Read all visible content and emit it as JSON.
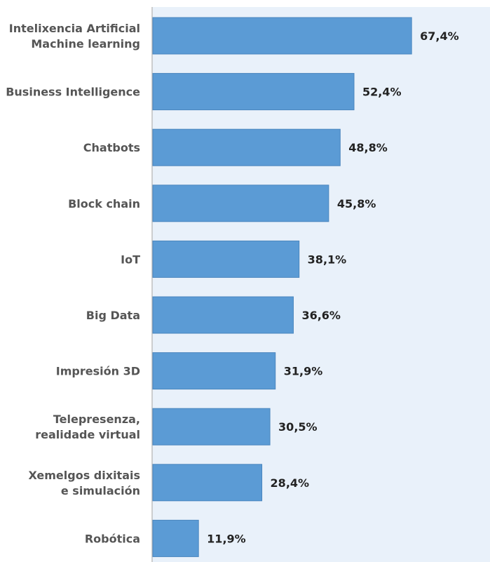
{
  "chart_data": {
    "type": "bar",
    "orientation": "horizontal",
    "categories": [
      [
        "Intelixencia Artificial",
        "Machine learning"
      ],
      [
        "Business Intelligence"
      ],
      [
        "Chatbots"
      ],
      [
        "Block chain"
      ],
      [
        "IoT"
      ],
      [
        "Big Data"
      ],
      [
        "Impresión 3D"
      ],
      [
        "Telepresenza,",
        "realidade virtual"
      ],
      [
        "Xemelgos dixitais",
        "e simulación"
      ],
      [
        "Robótica"
      ]
    ],
    "values": [
      67.4,
      52.4,
      48.8,
      45.8,
      38.1,
      36.6,
      31.9,
      30.5,
      28.4,
      11.9
    ],
    "value_labels": [
      "67,4%",
      "52,4%",
      "48,8%",
      "45,8%",
      "38,1%",
      "36,6%",
      "31,9%",
      "30,5%",
      "28,4%",
      "11,9%"
    ],
    "title": "",
    "xlabel": "",
    "ylabel": "",
    "xlim": [
      0,
      88
    ],
    "grid": false,
    "legend": "none",
    "colors": {
      "bar": "#5B9BD5",
      "bar_border": "#4A86BE",
      "plot_background": "#E9F1FA",
      "axis_line": "#BFBFBF",
      "category_text": "#555555",
      "value_text": "#222222"
    }
  }
}
